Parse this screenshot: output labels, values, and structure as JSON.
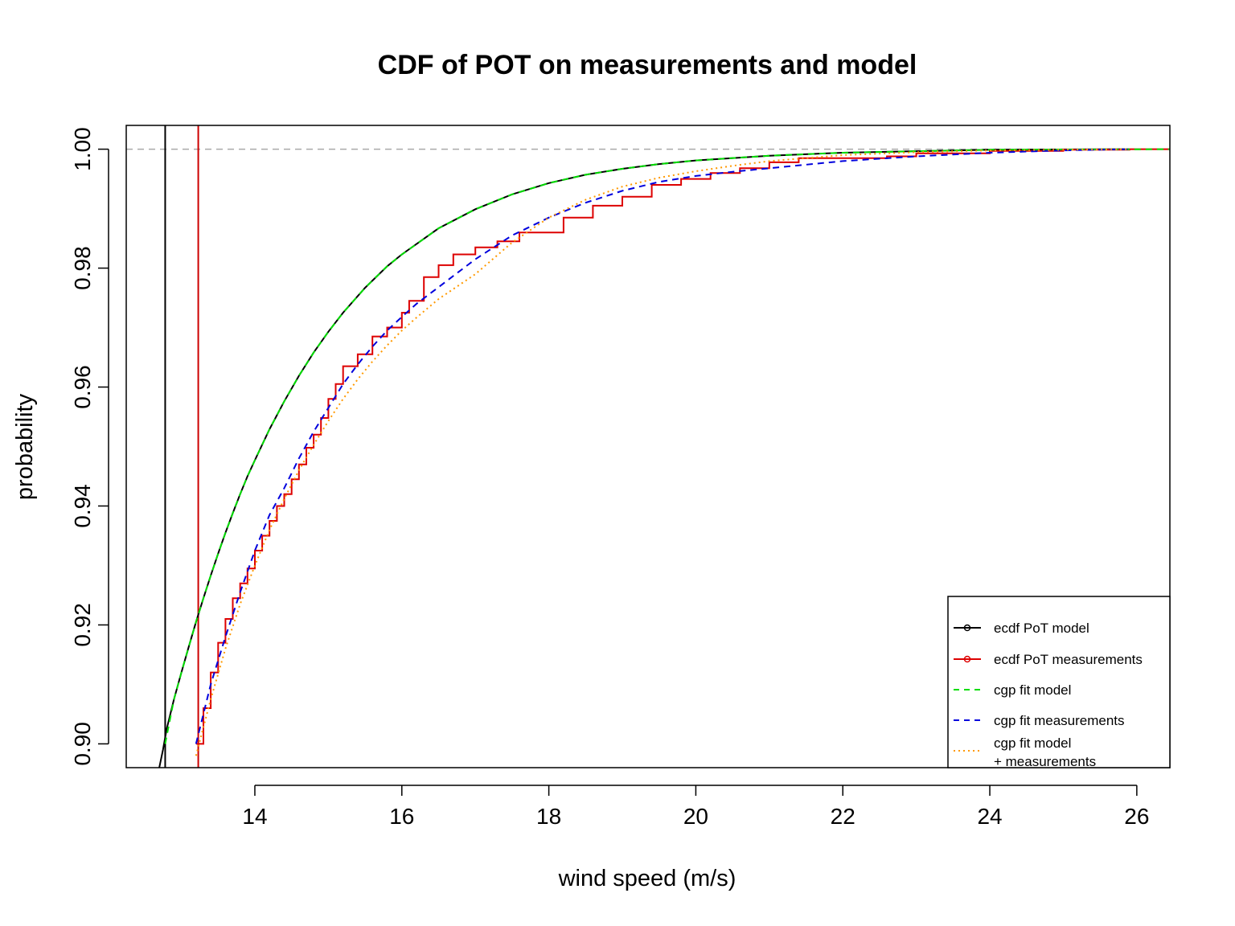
{
  "chart_data": {
    "type": "line",
    "title": "CDF of POT on measurements and model",
    "xlabel": "wind speed (m/s)",
    "ylabel": "probability",
    "xlim": [
      12.25,
      26.45
    ],
    "ylim": [
      0.896,
      1.004
    ],
    "xticks": [
      14,
      16,
      18,
      20,
      22,
      24,
      26
    ],
    "yticks": [
      0.9,
      0.92,
      0.94,
      0.96,
      0.98,
      1.0
    ],
    "ytick_labels": [
      "0.90",
      "0.92",
      "0.94",
      "0.96",
      "0.98",
      "1.00"
    ],
    "grid": false,
    "legend_position": "bottom-right",
    "reference_lines": {
      "horizontal": [
        {
          "y": 1.0,
          "color": "#aaaaaa",
          "style": "dashed"
        }
      ],
      "vertical": [
        {
          "x": 12.78,
          "color": "#000000",
          "style": "solid"
        },
        {
          "x": 13.23,
          "color": "#cc0000",
          "style": "solid"
        }
      ]
    },
    "series": [
      {
        "name": "ecdf PoT model",
        "color": "#000000",
        "style": "solid",
        "legend_marker": "circle",
        "x": [
          12.7,
          12.75,
          12.8,
          12.9,
          13.0,
          13.1,
          13.2,
          13.3,
          13.4,
          13.5,
          13.6,
          13.7,
          13.8,
          13.9,
          14.0,
          14.2,
          14.4,
          14.6,
          14.8,
          15.0,
          15.2,
          15.5,
          15.8,
          16.0,
          16.5,
          17.0,
          17.5,
          18.0,
          18.5,
          19.0,
          19.5,
          20.0,
          21.0,
          22.0,
          24.0,
          25.9
        ],
        "y": [
          0.896,
          0.899,
          0.9025,
          0.9075,
          0.912,
          0.9163,
          0.9205,
          0.9245,
          0.9283,
          0.932,
          0.9355,
          0.9388,
          0.942,
          0.945,
          0.9477,
          0.9529,
          0.9576,
          0.9619,
          0.9658,
          0.9693,
          0.9725,
          0.9767,
          0.9803,
          0.9823,
          0.9867,
          0.9899,
          0.9924,
          0.9943,
          0.9957,
          0.9967,
          0.9975,
          0.9981,
          0.9989,
          0.9994,
          0.9999,
          1.0
        ]
      },
      {
        "name": "ecdf PoT measurements",
        "color": "#dd0000",
        "style": "step",
        "legend_marker": "circle",
        "x": [
          13.2,
          13.3,
          13.4,
          13.5,
          13.6,
          13.7,
          13.8,
          13.9,
          14.0,
          14.1,
          14.2,
          14.3,
          14.4,
          14.5,
          14.6,
          14.7,
          14.8,
          14.9,
          15.0,
          15.1,
          15.2,
          15.4,
          15.6,
          15.8,
          16.0,
          16.1,
          16.3,
          16.5,
          16.7,
          17.0,
          17.3,
          17.6,
          18.2,
          18.6,
          19.0,
          19.4,
          19.8,
          20.2,
          20.6,
          21.0,
          21.4,
          22.6,
          23.0,
          24.0,
          25.0,
          25.9
        ],
        "y": [
          0.9,
          0.906,
          0.912,
          0.917,
          0.921,
          0.9245,
          0.927,
          0.9295,
          0.9325,
          0.935,
          0.9375,
          0.94,
          0.942,
          0.9445,
          0.947,
          0.9498,
          0.952,
          0.9548,
          0.958,
          0.9605,
          0.9635,
          0.9655,
          0.9685,
          0.97,
          0.9725,
          0.9745,
          0.9785,
          0.9805,
          0.9823,
          0.9835,
          0.9845,
          0.986,
          0.9885,
          0.9905,
          0.992,
          0.994,
          0.995,
          0.996,
          0.9968,
          0.9978,
          0.9985,
          0.9988,
          0.9993,
          0.9997,
          0.9999,
          1.0
        ]
      },
      {
        "name": "cgp fit model",
        "color": "#00dd00",
        "style": "dashed",
        "legend_marker": "none",
        "x": [
          12.78,
          12.9,
          13.0,
          13.1,
          13.2,
          13.3,
          13.4,
          13.5,
          13.6,
          13.7,
          13.8,
          13.9,
          14.0,
          14.2,
          14.4,
          14.6,
          14.8,
          15.0,
          15.2,
          15.5,
          15.8,
          16.0,
          16.5,
          17.0,
          17.5,
          18.0,
          18.5,
          19.0,
          19.5,
          20.0,
          21.0,
          22.0,
          24.0,
          26.45
        ],
        "y": [
          0.9,
          0.9075,
          0.912,
          0.9163,
          0.9205,
          0.9245,
          0.9283,
          0.932,
          0.9355,
          0.9388,
          0.942,
          0.945,
          0.9477,
          0.9529,
          0.9576,
          0.9619,
          0.9658,
          0.9693,
          0.9725,
          0.9767,
          0.9803,
          0.9823,
          0.9867,
          0.9899,
          0.9924,
          0.9943,
          0.9957,
          0.9967,
          0.9975,
          0.9981,
          0.9989,
          0.9994,
          0.9999,
          1.0
        ]
      },
      {
        "name": "cgp fit measurements",
        "color": "#0000dd",
        "style": "dashed",
        "legend_marker": "none",
        "x": [
          13.2,
          13.4,
          13.6,
          13.8,
          14.0,
          14.2,
          14.4,
          14.6,
          14.8,
          15.0,
          15.2,
          15.4,
          15.6,
          15.8,
          16.0,
          16.2,
          16.5,
          17.0,
          17.5,
          18.0,
          18.5,
          19.0,
          19.5,
          20.0,
          20.5,
          21.0,
          22.0,
          23.0,
          24.0,
          25.0,
          25.9
        ],
        "y": [
          0.9,
          0.91,
          0.918,
          0.9255,
          0.9325,
          0.9385,
          0.943,
          0.948,
          0.9525,
          0.9565,
          0.9605,
          0.9638,
          0.9668,
          0.9695,
          0.9718,
          0.974,
          0.9768,
          0.9815,
          0.9855,
          0.9885,
          0.991,
          0.993,
          0.9945,
          0.9955,
          0.9962,
          0.9968,
          0.998,
          0.9988,
          0.9994,
          0.9998,
          1.0
        ]
      },
      {
        "name": "cgp fit model\n+ measurements",
        "color": "#ff9900",
        "style": "dotted",
        "legend_marker": "none",
        "x": [
          13.2,
          13.4,
          13.6,
          13.8,
          14.0,
          14.2,
          14.4,
          14.6,
          14.8,
          15.0,
          15.2,
          15.4,
          15.6,
          15.8,
          16.0,
          16.2,
          16.5,
          17.0,
          17.5,
          18.0,
          18.5,
          19.0,
          19.5,
          20.0,
          20.5,
          21.0,
          22.0,
          23.0,
          24.0,
          25.0,
          25.9
        ],
        "y": [
          0.898,
          0.9075,
          0.916,
          0.9235,
          0.93,
          0.936,
          0.9412,
          0.946,
          0.9503,
          0.9543,
          0.958,
          0.9613,
          0.9643,
          0.967,
          0.9695,
          0.9717,
          0.9748,
          0.979,
          0.9843,
          0.9885,
          0.9915,
          0.9937,
          0.9952,
          0.9963,
          0.9972,
          0.998,
          0.999,
          0.9995,
          0.9998,
          0.9999,
          1.0
        ]
      }
    ]
  }
}
